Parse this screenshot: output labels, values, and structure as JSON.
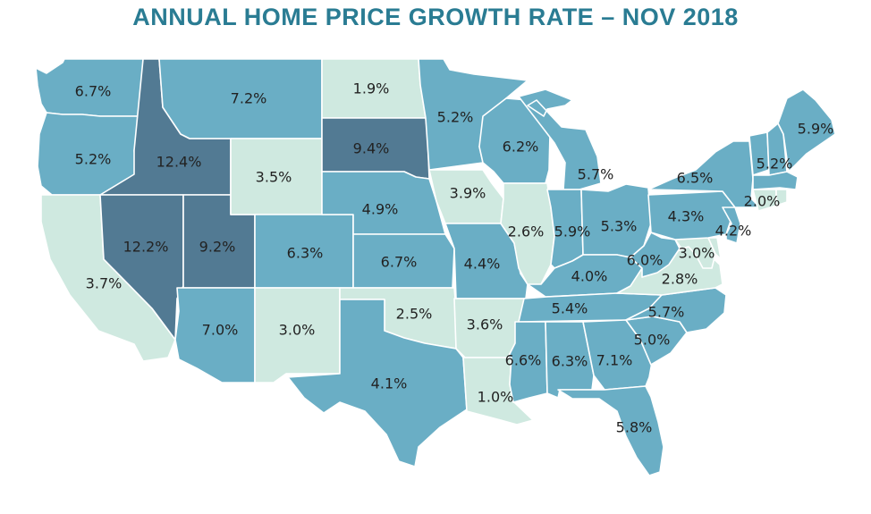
{
  "title": "ANNUAL HOME PRICE GROWTH RATE – NOV 2018",
  "colors": {
    "title": "#2a7c93",
    "low": "#cfe9e0",
    "mid": "#6aaec5",
    "high": "#527a93",
    "water": "#ffffff"
  },
  "states": [
    {
      "id": "WA",
      "value": "6.7%",
      "tier": "mid"
    },
    {
      "id": "OR",
      "value": "5.2%",
      "tier": "mid"
    },
    {
      "id": "CA",
      "value": "3.7%",
      "tier": "low"
    },
    {
      "id": "ID",
      "value": "12.4%",
      "tier": "high"
    },
    {
      "id": "NV",
      "value": "12.2%",
      "tier": "high"
    },
    {
      "id": "UT",
      "value": "9.2%",
      "tier": "high"
    },
    {
      "id": "AZ",
      "value": "7.0%",
      "tier": "mid"
    },
    {
      "id": "MT",
      "value": "7.2%",
      "tier": "mid"
    },
    {
      "id": "WY",
      "value": "3.5%",
      "tier": "low"
    },
    {
      "id": "CO",
      "value": "6.3%",
      "tier": "mid"
    },
    {
      "id": "NM",
      "value": "3.0%",
      "tier": "low"
    },
    {
      "id": "ND",
      "value": "1.9%",
      "tier": "low"
    },
    {
      "id": "SD",
      "value": "9.4%",
      "tier": "high"
    },
    {
      "id": "NE",
      "value": "4.9%",
      "tier": "mid"
    },
    {
      "id": "KS",
      "value": "6.7%",
      "tier": "mid"
    },
    {
      "id": "OK",
      "value": "2.5%",
      "tier": "low"
    },
    {
      "id": "TX",
      "value": "4.1%",
      "tier": "mid"
    },
    {
      "id": "MN",
      "value": "5.2%",
      "tier": "mid"
    },
    {
      "id": "IA",
      "value": "3.9%",
      "tier": "low"
    },
    {
      "id": "MO",
      "value": "4.4%",
      "tier": "mid"
    },
    {
      "id": "AR",
      "value": "3.6%",
      "tier": "low"
    },
    {
      "id": "LA",
      "value": "1.0%",
      "tier": "low"
    },
    {
      "id": "WI",
      "value": "6.2%",
      "tier": "mid"
    },
    {
      "id": "IL",
      "value": "2.6%",
      "tier": "low"
    },
    {
      "id": "MI",
      "value": "5.7%",
      "tier": "mid"
    },
    {
      "id": "IN",
      "value": "5.9%",
      "tier": "mid"
    },
    {
      "id": "OH",
      "value": "5.3%",
      "tier": "mid"
    },
    {
      "id": "KY",
      "value": "4.0%",
      "tier": "mid"
    },
    {
      "id": "TN",
      "value": "5.4%",
      "tier": "mid"
    },
    {
      "id": "MS",
      "value": "6.6%",
      "tier": "mid"
    },
    {
      "id": "AL",
      "value": "6.3%",
      "tier": "mid"
    },
    {
      "id": "GA",
      "value": "7.1%",
      "tier": "mid"
    },
    {
      "id": "FL",
      "value": "5.8%",
      "tier": "mid"
    },
    {
      "id": "SC",
      "value": "5.0%",
      "tier": "mid"
    },
    {
      "id": "NC",
      "value": "5.7%",
      "tier": "mid"
    },
    {
      "id": "VA",
      "value": "2.8%",
      "tier": "low"
    },
    {
      "id": "WV",
      "value": "6.0%",
      "tier": "mid"
    },
    {
      "id": "MD",
      "value": "3.0%",
      "tier": "low"
    },
    {
      "id": "DE",
      "value": "",
      "tier": "low"
    },
    {
      "id": "PA",
      "value": "4.3%",
      "tier": "mid"
    },
    {
      "id": "NJ",
      "value": "4.2%",
      "tier": "mid"
    },
    {
      "id": "NY",
      "value": "6.5%",
      "tier": "mid"
    },
    {
      "id": "CT",
      "value": "2.0%",
      "tier": "low"
    },
    {
      "id": "RI",
      "value": "",
      "tier": "low"
    },
    {
      "id": "MA",
      "value": "",
      "tier": "mid"
    },
    {
      "id": "VT",
      "value": "",
      "tier": "mid"
    },
    {
      "id": "NH",
      "value": "5.2%",
      "tier": "mid"
    },
    {
      "id": "ME",
      "value": "5.9%",
      "tier": "mid"
    }
  ]
}
